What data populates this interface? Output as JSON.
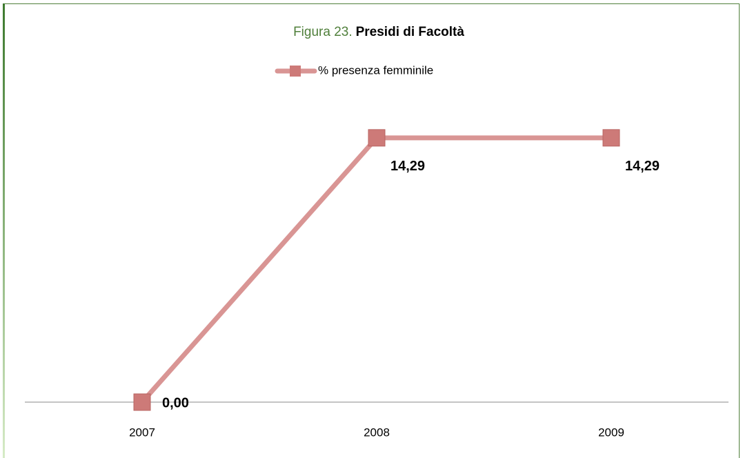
{
  "chart_data": {
    "type": "line",
    "title": [
      "Figura 23.",
      "Presidi di Facoltà"
    ],
    "categories": [
      "2007",
      "2008",
      "2009"
    ],
    "series": [
      {
        "name": "% presenza femminile",
        "color": "#d99594",
        "marker_color": "#cd7a78",
        "values": [
          0,
          14.29,
          14.29
        ],
        "value_labels": [
          "0,00",
          "14,29",
          "14,29"
        ]
      }
    ],
    "ylim": [
      0,
      16
    ],
    "legend": "top"
  }
}
